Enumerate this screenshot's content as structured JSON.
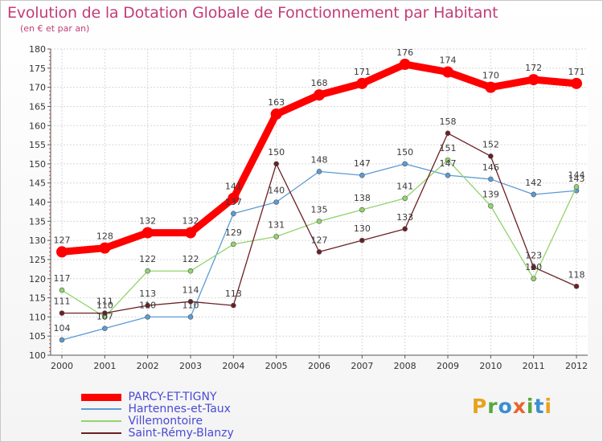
{
  "header": {
    "title": "Evolution de la Dotation Globale de Fonctionnement par Habitant",
    "subtitle": "(en € et par an)"
  },
  "brand": {
    "text": "Proxiti",
    "letters": [
      {
        "ch": "P",
        "color": "#e8a21c"
      },
      {
        "ch": "r",
        "color": "#58a83c"
      },
      {
        "ch": "o",
        "color": "#3a8fd0"
      },
      {
        "ch": "x",
        "color": "#e8652c"
      },
      {
        "ch": "i",
        "color": "#58a83c"
      },
      {
        "ch": "t",
        "color": "#3a8fd0"
      },
      {
        "ch": "i",
        "color": "#e8a21c"
      }
    ]
  },
  "chart_data": {
    "type": "line",
    "title": "Evolution de la Dotation Globale de Fonctionnement par Habitant",
    "subtitle": "(en € et par an)",
    "xlabel": "",
    "ylabel": "",
    "ylim": [
      100,
      180
    ],
    "ytick_step": 5,
    "grid": true,
    "legend_position": "bottom-left",
    "categories": [
      "2000",
      "2001",
      "2002",
      "2003",
      "2004",
      "2005",
      "2006",
      "2007",
      "2008",
      "2009",
      "2010",
      "2011",
      "2012"
    ],
    "series": [
      {
        "name": "PARCY-ET-TIGNY",
        "color": "#ff0000",
        "values": [
          127,
          128,
          132,
          132,
          141,
          163,
          168,
          171,
          176,
          174,
          170,
          172,
          171
        ],
        "labels": [
          "127",
          "128",
          "132",
          "132",
          "141",
          "163",
          "168",
          "171",
          "176",
          "174",
          "170",
          "172",
          "171"
        ]
      },
      {
        "name": "Hartennes-et-Taux",
        "color": "#5b9bd5",
        "values": [
          104,
          107,
          110,
          110,
          137,
          140,
          148,
          147,
          150,
          147,
          146,
          142,
          143
        ],
        "labels": [
          "104",
          "107",
          "110",
          "110",
          "137",
          "140",
          "148",
          "147",
          "150",
          "147",
          "146",
          "142",
          "143"
        ]
      },
      {
        "name": "Villemontoire",
        "color": "#92d36e",
        "values": [
          117,
          110,
          122,
          122,
          129,
          131,
          135,
          138,
          141,
          151,
          139,
          120,
          144
        ],
        "labels": [
          "117",
          "110",
          "122",
          "122",
          "129",
          "131",
          "135",
          "138",
          "141",
          "151",
          "139",
          "120",
          "144"
        ]
      },
      {
        "name": "Saint-Rémy-Blanzy",
        "color": "#6b1f24",
        "values": [
          111,
          111,
          113,
          114,
          113,
          150,
          127,
          130,
          133,
          158,
          152,
          123,
          118
        ],
        "labels": [
          "111",
          "111",
          "113",
          "114",
          "113",
          "150",
          "127",
          "130",
          "133",
          "158",
          "152",
          "123",
          "118"
        ]
      }
    ]
  }
}
